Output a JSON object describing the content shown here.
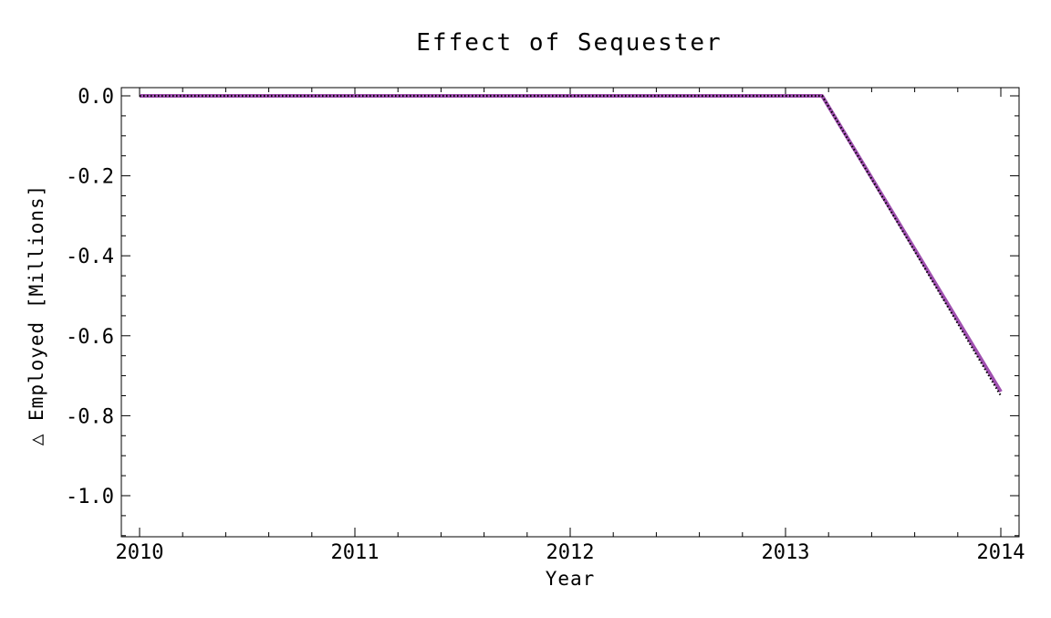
{
  "chart_data": {
    "type": "line",
    "title": "Effect of Sequester",
    "xlabel": "Year",
    "ylabel": "△ Employed [Millions]",
    "xlim": [
      2010,
      2014
    ],
    "ylim": [
      -1.1,
      0.0
    ],
    "x_ticks": [
      2010,
      2011,
      2012,
      2013,
      2014
    ],
    "x_tick_labels": [
      "2010",
      "2011",
      "2012",
      "2013",
      "2014"
    ],
    "y_ticks": [
      0.0,
      -0.2,
      -0.4,
      -0.6,
      -0.8,
      -1.0
    ],
    "y_tick_labels": [
      "0.0",
      "-0.2",
      "-0.4",
      "-0.6",
      "-0.8",
      "-1.0"
    ],
    "grid": false,
    "series": [
      {
        "style": "solid",
        "color": "#a050b0",
        "x": [
          2010,
          2013.17,
          2014
        ],
        "y": [
          0.0,
          0.0,
          -0.74
        ]
      },
      {
        "style": "dotted",
        "color": "#000000",
        "x": [
          2010,
          2013.17,
          2014
        ],
        "y": [
          0.0,
          0.0,
          -0.75
        ]
      }
    ]
  }
}
